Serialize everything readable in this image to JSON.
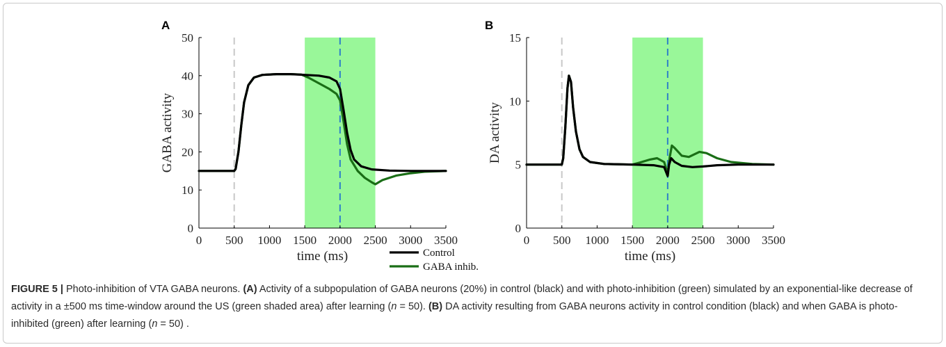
{
  "chart_data": [
    {
      "panel": "A",
      "type": "line",
      "ylabel": "GABA activity",
      "xlabel": "time (ms)",
      "xlim": [
        0,
        3500
      ],
      "ylim": [
        0,
        50
      ],
      "xticks": [
        0,
        500,
        1000,
        1500,
        2000,
        2500,
        3000,
        3500
      ],
      "yticks": [
        0,
        10,
        20,
        30,
        40,
        50
      ],
      "shaded_region": {
        "x": [
          1500,
          2500
        ],
        "color": "#99f799"
      },
      "vlines": [
        {
          "x": 500,
          "color": "#c8c8c8",
          "style": "dashed"
        },
        {
          "x": 2000,
          "color": "#2e80c8",
          "style": "dashed"
        }
      ],
      "legend": {
        "position": "bottom-right",
        "entries": [
          "Control",
          "GABA inhib."
        ]
      },
      "series": [
        {
          "name": "Control",
          "color": "#000000",
          "points": [
            [
              0,
              15
            ],
            [
              500,
              15
            ],
            [
              520,
              15.5
            ],
            [
              560,
              20
            ],
            [
              600,
              27
            ],
            [
              640,
              33
            ],
            [
              700,
              37.5
            ],
            [
              780,
              39.5
            ],
            [
              900,
              40.2
            ],
            [
              1100,
              40.4
            ],
            [
              1300,
              40.4
            ],
            [
              1500,
              40.2
            ],
            [
              1700,
              40
            ],
            [
              1850,
              39.5
            ],
            [
              1950,
              38.5
            ],
            [
              2000,
              36.5
            ],
            [
              2050,
              31
            ],
            [
              2100,
              25
            ],
            [
              2150,
              20.5
            ],
            [
              2200,
              18
            ],
            [
              2300,
              16.2
            ],
            [
              2450,
              15.4
            ],
            [
              2700,
              15.1
            ],
            [
              3000,
              15
            ],
            [
              3500,
              15
            ]
          ]
        },
        {
          "name": "GABA inhib.",
          "color": "#1a6e16",
          "points": [
            [
              0,
              15
            ],
            [
              500,
              15
            ],
            [
              520,
              15.5
            ],
            [
              560,
              20
            ],
            [
              600,
              27
            ],
            [
              640,
              33
            ],
            [
              700,
              37.5
            ],
            [
              780,
              39.5
            ],
            [
              900,
              40.2
            ],
            [
              1100,
              40.4
            ],
            [
              1300,
              40.4
            ],
            [
              1450,
              40.3
            ],
            [
              1550,
              39.5
            ],
            [
              1650,
              38.5
            ],
            [
              1750,
              37.5
            ],
            [
              1850,
              36.5
            ],
            [
              1950,
              35.2
            ],
            [
              2000,
              33.5
            ],
            [
              2050,
              28
            ],
            [
              2100,
              22
            ],
            [
              2150,
              18
            ],
            [
              2250,
              15
            ],
            [
              2350,
              13.2
            ],
            [
              2450,
              12
            ],
            [
              2500,
              11.5
            ],
            [
              2600,
              12.6
            ],
            [
              2800,
              13.8
            ],
            [
              3000,
              14.4
            ],
            [
              3200,
              14.8
            ],
            [
              3500,
              15
            ]
          ]
        }
      ]
    },
    {
      "panel": "B",
      "type": "line",
      "ylabel": "DA activity",
      "xlabel": "time (ms)",
      "xlim": [
        0,
        3500
      ],
      "ylim": [
        0,
        15
      ],
      "xticks": [
        0,
        500,
        1000,
        1500,
        2000,
        2500,
        3000,
        3500
      ],
      "yticks": [
        0,
        5,
        10,
        15
      ],
      "shaded_region": {
        "x": [
          1500,
          2500
        ],
        "color": "#99f799"
      },
      "vlines": [
        {
          "x": 500,
          "color": "#c8c8c8",
          "style": "dashed"
        },
        {
          "x": 2000,
          "color": "#2e80c8",
          "style": "dashed"
        }
      ],
      "series": [
        {
          "name": "Control",
          "color": "#000000",
          "points": [
            [
              0,
              5
            ],
            [
              500,
              5
            ],
            [
              520,
              5.5
            ],
            [
              550,
              8
            ],
            [
              580,
              11
            ],
            [
              600,
              12
            ],
            [
              630,
              11.5
            ],
            [
              660,
              9.5
            ],
            [
              700,
              7.6
            ],
            [
              750,
              6.2
            ],
            [
              800,
              5.6
            ],
            [
              900,
              5.2
            ],
            [
              1100,
              5.05
            ],
            [
              1500,
              5
            ],
            [
              1800,
              4.95
            ],
            [
              1950,
              4.8
            ],
            [
              2000,
              4.1
            ],
            [
              2020,
              5
            ],
            [
              2050,
              5.5
            ],
            [
              2100,
              5.2
            ],
            [
              2200,
              4.9
            ],
            [
              2350,
              4.8
            ],
            [
              2500,
              4.85
            ],
            [
              2700,
              4.95
            ],
            [
              3000,
              5
            ],
            [
              3500,
              5
            ]
          ]
        },
        {
          "name": "GABA inhib.",
          "color": "#1a6e16",
          "points": [
            [
              0,
              5
            ],
            [
              500,
              5
            ],
            [
              520,
              5.5
            ],
            [
              550,
              8
            ],
            [
              580,
              11
            ],
            [
              600,
              12
            ],
            [
              630,
              11.5
            ],
            [
              660,
              9.5
            ],
            [
              700,
              7.6
            ],
            [
              750,
              6.2
            ],
            [
              800,
              5.6
            ],
            [
              900,
              5.2
            ],
            [
              1100,
              5.05
            ],
            [
              1500,
              5
            ],
            [
              1600,
              5.15
            ],
            [
              1750,
              5.4
            ],
            [
              1850,
              5.5
            ],
            [
              1950,
              5.2
            ],
            [
              2000,
              4.3
            ],
            [
              2030,
              5.6
            ],
            [
              2060,
              6.5
            ],
            [
              2100,
              6.3
            ],
            [
              2200,
              5.7
            ],
            [
              2300,
              5.6
            ],
            [
              2450,
              6
            ],
            [
              2550,
              5.9
            ],
            [
              2700,
              5.5
            ],
            [
              2900,
              5.2
            ],
            [
              3200,
              5.05
            ],
            [
              3500,
              5
            ]
          ]
        }
      ]
    }
  ],
  "caption": {
    "figure_label": "FIGURE 5 |",
    "title": "Photo-inhibition of VTA GABA neurons.",
    "a_label": "(A)",
    "a_text": "Activity of a subpopulation of GABA neurons (20%) in control (black) and with photo-inhibition (green) simulated by an exponential-like decrease of activity in a ±500 ms time-window around the US (green shaded area) after learning (",
    "n_symbol": "n",
    "n_value_a": " = 50).",
    "b_label": "(B)",
    "b_text": "DA activity resulting from GABA neurons activity in control condition (black) and when GABA is photo-inhibited (green) after learning (",
    "n_value_b": " = 50) ."
  }
}
